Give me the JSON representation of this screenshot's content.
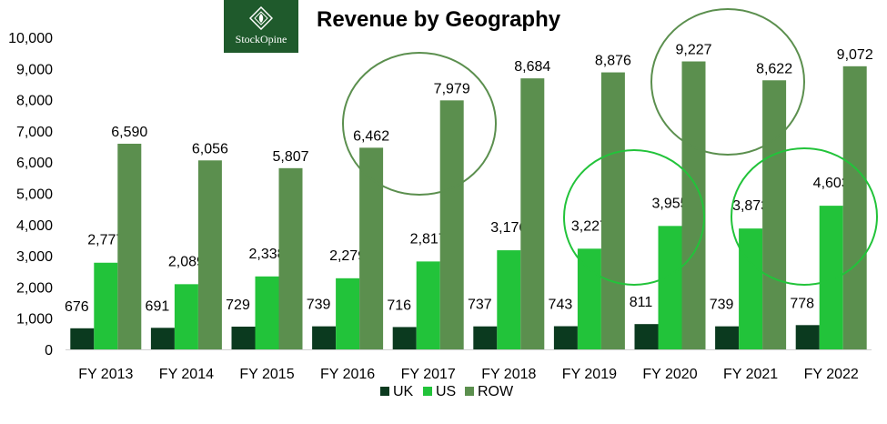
{
  "logo": {
    "text": "StockOpine",
    "icon": "diamond-logo-icon"
  },
  "chart_data": {
    "type": "bar",
    "title": "Revenue by Geography",
    "xlabel": "",
    "ylabel": "",
    "ylim": [
      0,
      10000
    ],
    "yticks": [
      "0",
      "1,000",
      "2,000",
      "3,000",
      "4,000",
      "5,000",
      "6,000",
      "7,000",
      "8,000",
      "9,000",
      "10,000"
    ],
    "categories": [
      "FY 2013",
      "FY 2014",
      "FY 2015",
      "FY 2016",
      "FY 2017",
      "FY 2018",
      "FY 2019",
      "FY 2020",
      "FY 2021",
      "FY 2022"
    ],
    "series": [
      {
        "name": "UK",
        "color": "#0b3a1f",
        "values": [
          676,
          691,
          729,
          739,
          716,
          737,
          743,
          811,
          739,
          778
        ]
      },
      {
        "name": "US",
        "color": "#22c33a",
        "values": [
          2777,
          2089,
          2338,
          2279,
          2817,
          3176,
          3227,
          3955,
          3873,
          4603
        ]
      },
      {
        "name": "ROW",
        "color": "#5b8f4e",
        "values": [
          6590,
          6056,
          5807,
          6462,
          7979,
          8684,
          8876,
          9227,
          8622,
          9072
        ]
      }
    ],
    "grid": false,
    "legend": "bottom",
    "annotations": [
      {
        "type": "circle",
        "around": "FY 2016-FY 2017 ROW",
        "color": "#5b8f4e"
      },
      {
        "type": "circle",
        "around": "FY 2020-FY 2021 ROW",
        "color": "#5b8f4e"
      },
      {
        "type": "circle",
        "around": "FY 2019-FY 2020 US",
        "color": "#22c33a"
      },
      {
        "type": "circle",
        "around": "FY 2021-FY 2022 US",
        "color": "#22c33a"
      }
    ]
  }
}
